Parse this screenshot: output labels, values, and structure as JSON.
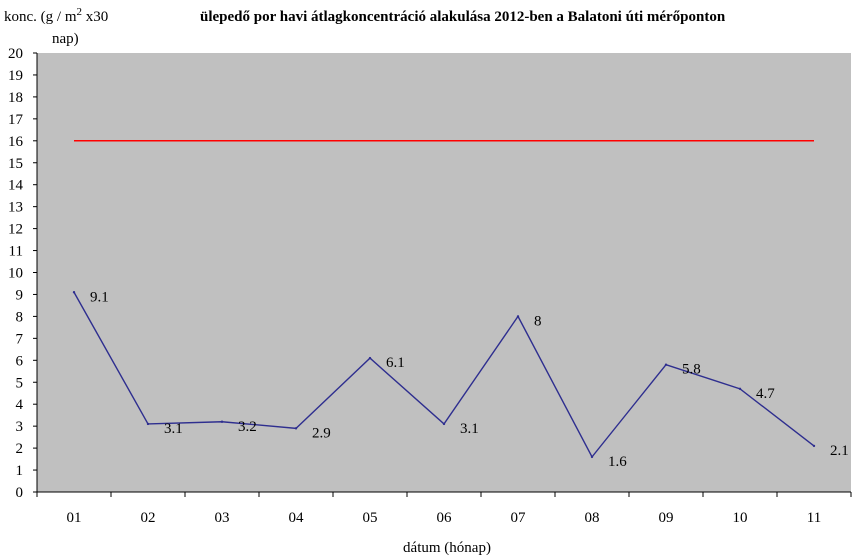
{
  "chart_data": {
    "type": "line",
    "title": "ülepedő  por  havi  átlagkoncentráció  alakulása  2012-ben  a  Balatoni  úti  mérőponton",
    "ylabel_line1_prefix": "konc. (g / m",
    "ylabel_line1_sup": "2",
    "ylabel_line1_suffix": " x30",
    "ylabel_line2": "nap)",
    "xlabel": "dátum (hónap)",
    "categories": [
      "01",
      "02",
      "03",
      "04",
      "05",
      "06",
      "07",
      "08",
      "09",
      "10",
      "11"
    ],
    "series": [
      {
        "values": [
          9.1,
          3.1,
          3.2,
          2.9,
          6.1,
          3.1,
          8,
          1.6,
          5.8,
          4.7,
          2.1
        ],
        "labels": [
          "9.1",
          "3.1",
          "3.2",
          "2.9",
          "6.1",
          "3.1",
          "8",
          "1.6",
          "5.8",
          "4.7",
          "2.1"
        ],
        "color": "#2e2e8f"
      }
    ],
    "limit_line": {
      "value": 16,
      "color": "#ff0000"
    },
    "y_ticks": [
      "0",
      "1",
      "2",
      "3",
      "4",
      "5",
      "6",
      "7",
      "8",
      "9",
      "10",
      "11",
      "12",
      "13",
      "14",
      "15",
      "16",
      "17",
      "18",
      "19",
      "20"
    ],
    "ylim": [
      0,
      20
    ],
    "plot_background": "#c0c0c0",
    "grid": false
  }
}
